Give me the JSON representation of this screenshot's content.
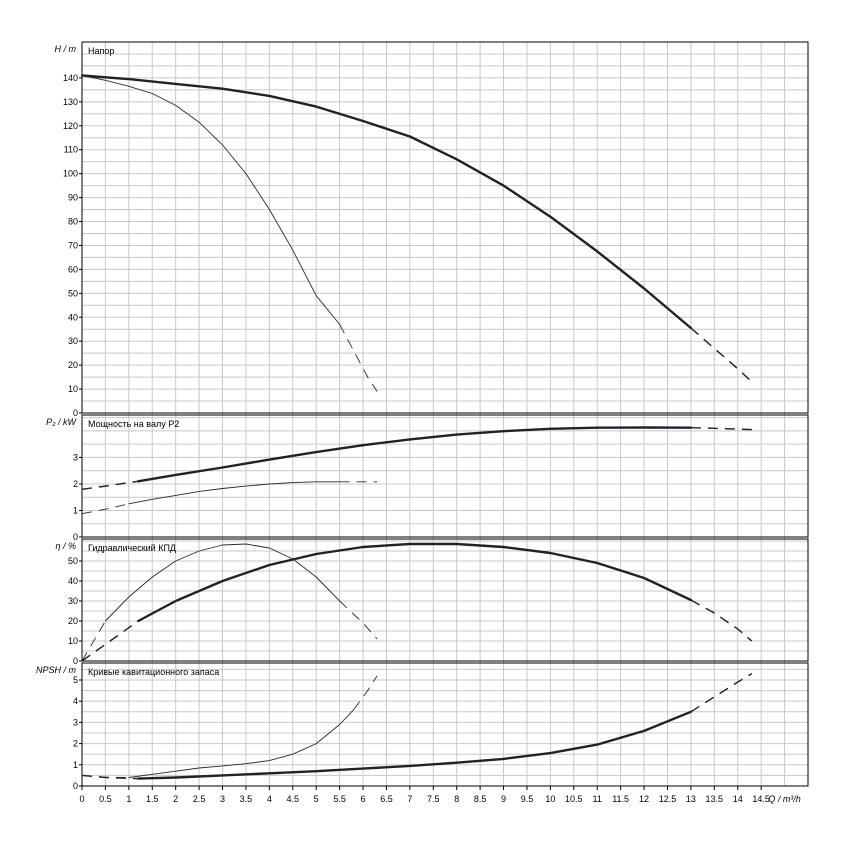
{
  "chart_data": {
    "type": "line",
    "x_axis": {
      "label": "Q / m³/h",
      "range": [
        0,
        15.5
      ],
      "tick_step": 0.5,
      "ticks": [
        "0",
        "0.5",
        "1",
        "1.5",
        "2",
        "2.5",
        "3",
        "3.5",
        "4",
        "4.5",
        "5",
        "5.5",
        "6",
        "6.5",
        "7",
        "7.5",
        "8",
        "8.5",
        "9",
        "9.5",
        "10",
        "10.5",
        "11",
        "11.5",
        "12",
        "12.5",
        "13",
        "13.5",
        "14",
        "14.5"
      ]
    },
    "grid": true,
    "panels": [
      {
        "id": "head",
        "title": "Напор",
        "ylabel": "H / m",
        "ylim": [
          0,
          155
        ],
        "yticks": [
          0,
          10,
          20,
          30,
          40,
          50,
          60,
          70,
          80,
          90,
          100,
          110,
          120,
          130,
          140
        ],
        "series": [
          {
            "style": "thick",
            "solid": [
              [
                0,
                141
              ],
              [
                1,
                139.5
              ],
              [
                2,
                137.5
              ],
              [
                3,
                135.5
              ],
              [
                4,
                132.5
              ],
              [
                5,
                128
              ],
              [
                6,
                122
              ],
              [
                7,
                115.5
              ],
              [
                8,
                106
              ],
              [
                9,
                95
              ],
              [
                10,
                82
              ],
              [
                11,
                67.5
              ],
              [
                12,
                52
              ],
              [
                13,
                35.5
              ]
            ],
            "dashed": [
              [
                13,
                35.5
              ],
              [
                13.5,
                27
              ],
              [
                14,
                18.5
              ],
              [
                14.3,
                13
              ]
            ]
          },
          {
            "style": "thin",
            "solid": [
              [
                0,
                141
              ],
              [
                0.5,
                139
              ],
              [
                1,
                136.5
              ],
              [
                1.5,
                133.5
              ],
              [
                2,
                128.5
              ],
              [
                2.5,
                121.5
              ],
              [
                3,
                112
              ],
              [
                3.5,
                100
              ],
              [
                4,
                85
              ],
              [
                4.5,
                68
              ],
              [
                5,
                49
              ],
              [
                5.5,
                37
              ]
            ],
            "dashed": [
              [
                5.5,
                37
              ],
              [
                5.8,
                26
              ],
              [
                6.1,
                15
              ],
              [
                6.3,
                9
              ]
            ]
          }
        ]
      },
      {
        "id": "power",
        "title": "Мощность на валу P2",
        "ylabel": "P₂ / kW",
        "ylim": [
          0,
          4.6
        ],
        "yticks": [
          0,
          1,
          2,
          3
        ],
        "series": [
          {
            "style": "thick",
            "solid": [
              [
                1.2,
                2.1
              ],
              [
                2,
                2.34
              ],
              [
                3,
                2.62
              ],
              [
                4,
                2.92
              ],
              [
                5,
                3.2
              ],
              [
                6,
                3.46
              ],
              [
                7,
                3.68
              ],
              [
                8,
                3.86
              ],
              [
                9,
                3.99
              ],
              [
                10,
                4.08
              ],
              [
                11,
                4.12
              ],
              [
                12,
                4.13
              ],
              [
                13,
                4.12
              ]
            ],
            "dashed": [
              [
                0,
                1.8
              ],
              [
                0.5,
                1.92
              ],
              [
                1.2,
                2.1
              ]
            ],
            "dashed_end": [
              [
                13,
                4.12
              ],
              [
                13.5,
                4.1
              ],
              [
                14.3,
                4.05
              ]
            ]
          },
          {
            "style": "thin",
            "solid": [
              [
                1,
                1.25
              ],
              [
                1.5,
                1.42
              ],
              [
                2,
                1.57
              ],
              [
                2.5,
                1.72
              ],
              [
                3,
                1.83
              ],
              [
                3.5,
                1.92
              ],
              [
                4,
                2.0
              ],
              [
                4.5,
                2.05
              ],
              [
                5,
                2.08
              ],
              [
                5.5,
                2.08
              ]
            ],
            "dashed": [
              [
                0,
                0.88
              ],
              [
                0.5,
                1.05
              ],
              [
                1,
                1.25
              ]
            ],
            "dashed_end": [
              [
                5.5,
                2.08
              ],
              [
                6.3,
                2.08
              ]
            ]
          }
        ]
      },
      {
        "id": "efficiency",
        "title": "Гидравлический КПД",
        "ylabel": "η / %",
        "ylim": [
          0,
          61
        ],
        "yticks": [
          0,
          10,
          20,
          30,
          40,
          50
        ],
        "series": [
          {
            "style": "thick",
            "solid": [
              [
                1.2,
                20
              ],
              [
                2,
                30
              ],
              [
                3,
                40
              ],
              [
                4,
                48
              ],
              [
                5,
                53.5
              ],
              [
                6,
                57
              ],
              [
                7,
                58.5
              ],
              [
                8,
                58.5
              ],
              [
                9,
                57
              ],
              [
                10,
                54
              ],
              [
                11,
                49
              ],
              [
                12,
                41.5
              ],
              [
                13,
                30.5
              ]
            ],
            "dashed": [
              [
                0,
                0
              ],
              [
                0.6,
                10
              ],
              [
                1.2,
                20
              ]
            ],
            "dashed_end": [
              [
                13,
                30.5
              ],
              [
                13.5,
                24
              ],
              [
                14,
                16
              ],
              [
                14.3,
                10
              ]
            ]
          },
          {
            "style": "thin",
            "solid": [
              [
                0.5,
                20
              ],
              [
                1,
                32
              ],
              [
                1.5,
                42
              ],
              [
                2,
                50
              ],
              [
                2.5,
                55
              ],
              [
                3,
                58
              ],
              [
                3.5,
                58.5
              ],
              [
                4,
                56.5
              ],
              [
                4.5,
                51
              ],
              [
                5,
                42
              ],
              [
                5.5,
                30
              ]
            ],
            "dashed": [
              [
                0,
                0
              ],
              [
                0.25,
                10
              ],
              [
                0.5,
                20
              ]
            ],
            "dashed_end": [
              [
                5.5,
                30
              ],
              [
                6.0,
                19
              ],
              [
                6.3,
                11
              ]
            ]
          }
        ]
      },
      {
        "id": "npsh",
        "title": "Кривые кавитационного запаса",
        "ylabel": "NPSH / m",
        "ylim": [
          0,
          5.8
        ],
        "yticks": [
          0,
          1,
          2,
          3,
          4,
          5
        ],
        "series": [
          {
            "style": "thick",
            "solid": [
              [
                1.2,
                0.35
              ],
              [
                2,
                0.4
              ],
              [
                3,
                0.5
              ],
              [
                4,
                0.6
              ],
              [
                5,
                0.7
              ],
              [
                6,
                0.82
              ],
              [
                7,
                0.95
              ],
              [
                8,
                1.1
              ],
              [
                9,
                1.28
              ],
              [
                10,
                1.55
              ],
              [
                11,
                1.95
              ],
              [
                12,
                2.6
              ],
              [
                13,
                3.5
              ]
            ],
            "dashed": [
              [
                0,
                0.5
              ],
              [
                0.5,
                0.4
              ],
              [
                1.2,
                0.35
              ]
            ],
            "dashed_end": [
              [
                13,
                3.5
              ],
              [
                13.5,
                4.2
              ],
              [
                14,
                4.9
              ],
              [
                14.3,
                5.3
              ]
            ]
          },
          {
            "style": "thin",
            "solid": [
              [
                1,
                0.4
              ],
              [
                1.5,
                0.55
              ],
              [
                2,
                0.7
              ],
              [
                2.5,
                0.85
              ],
              [
                3,
                0.95
              ],
              [
                3.5,
                1.05
              ],
              [
                4,
                1.2
              ],
              [
                4.5,
                1.5
              ],
              [
                5,
                2.0
              ],
              [
                5.5,
                2.9
              ],
              [
                5.8,
                3.6
              ]
            ],
            "dashed": [
              [
                0,
                0.5
              ],
              [
                0.5,
                0.42
              ],
              [
                1,
                0.4
              ]
            ],
            "dashed_end": [
              [
                5.8,
                3.6
              ],
              [
                6.1,
                4.5
              ],
              [
                6.3,
                5.2
              ]
            ]
          }
        ]
      }
    ]
  }
}
